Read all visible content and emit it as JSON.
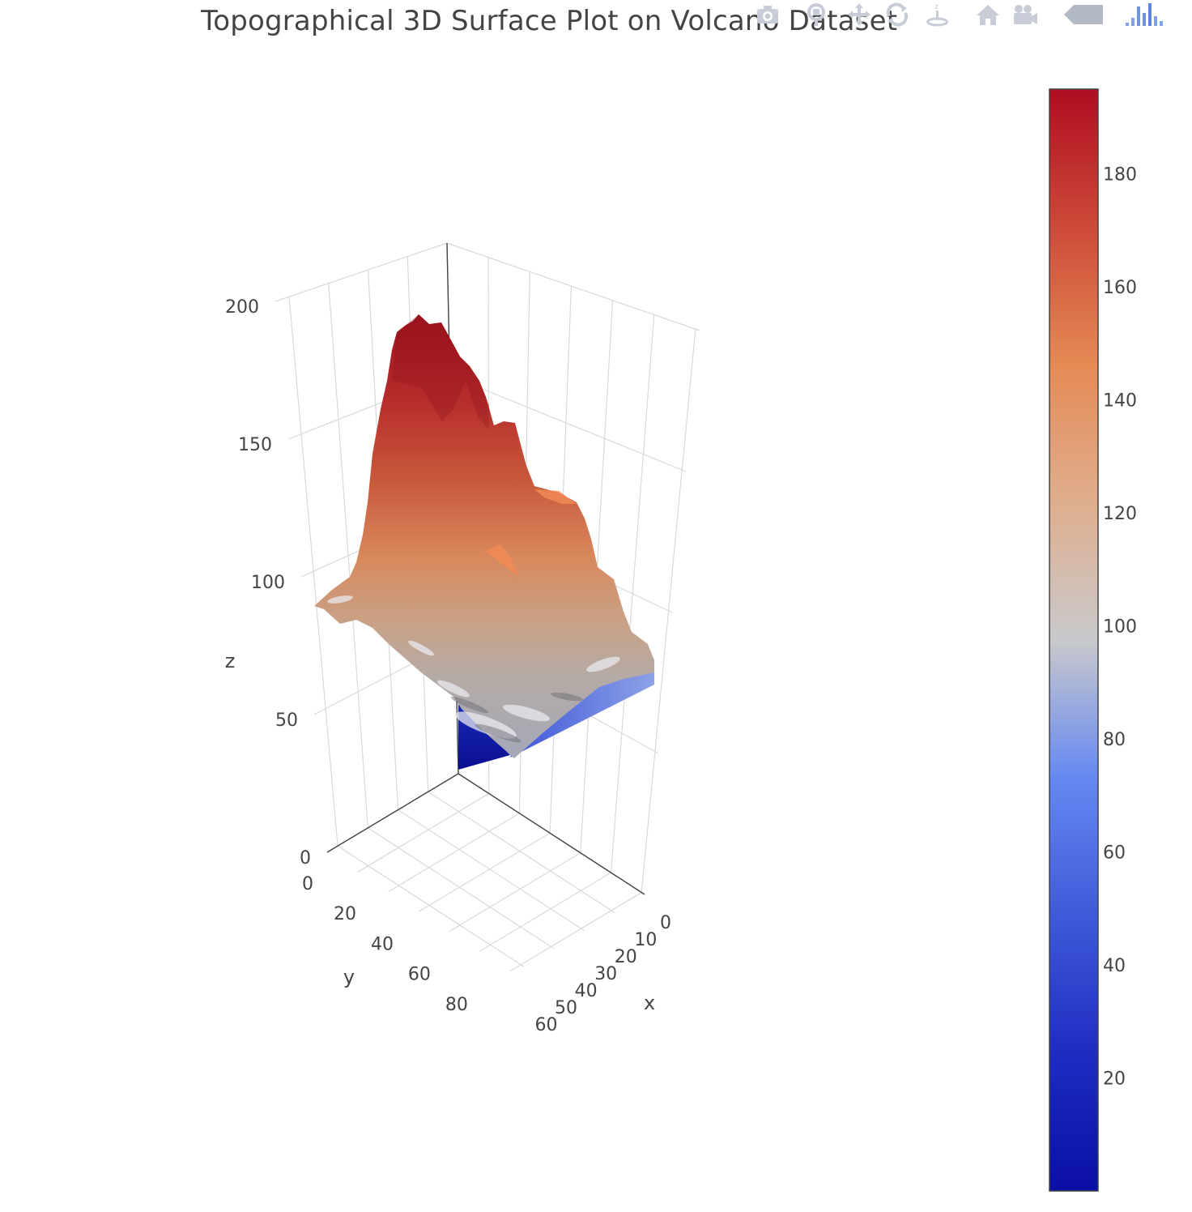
{
  "title": "Topographical 3D Surface Plot on Volcano Dataset",
  "modebar": [
    {
      "name": "camera-icon",
      "label": "Download plot as a png"
    },
    {
      "name": "zoom-icon",
      "label": "Zoom"
    },
    {
      "name": "pan-icon",
      "label": "Pan"
    },
    {
      "name": "orbit-rotation-icon",
      "label": "Orbital rotation"
    },
    {
      "name": "turntable-rotation-icon",
      "label": "Turntable rotation"
    },
    {
      "name": "home-icon",
      "label": "Reset camera to default"
    },
    {
      "name": "camera-view-icon",
      "label": "Reset camera to last save"
    },
    {
      "name": "hover-toggle-icon",
      "label": "Toggle show closest data on hover"
    },
    {
      "name": "plotly-logo-icon",
      "label": "Produced with Plotly"
    }
  ],
  "chart_data": {
    "type": "surface",
    "title": "Topographical 3D Surface Plot on Volcano Dataset",
    "xlabel": "x",
    "ylabel": "y",
    "zlabel": "z",
    "x_ticks": [
      0,
      10,
      20,
      30,
      40,
      50,
      60
    ],
    "y_ticks": [
      0,
      20,
      40,
      60,
      80
    ],
    "z_ticks": [
      0,
      50,
      100,
      150,
      200
    ],
    "xlim": [
      0,
      61
    ],
    "ylim": [
      0,
      87
    ],
    "zlim": [
      0,
      200
    ],
    "z_peak": 195,
    "z_floor": 94,
    "colorbar": {
      "colorscale": "coolwarm",
      "range": [
        0,
        195
      ],
      "ticks": [
        20,
        40,
        60,
        80,
        100,
        120,
        140,
        160,
        180
      ],
      "colors": [
        "#0a0fa6",
        "#2d3fd1",
        "#5a7ff0",
        "#9bb2f4",
        "#c9c9cc",
        "#e6a47a",
        "#e58a55",
        "#c94a35",
        "#b40e22"
      ]
    }
  }
}
